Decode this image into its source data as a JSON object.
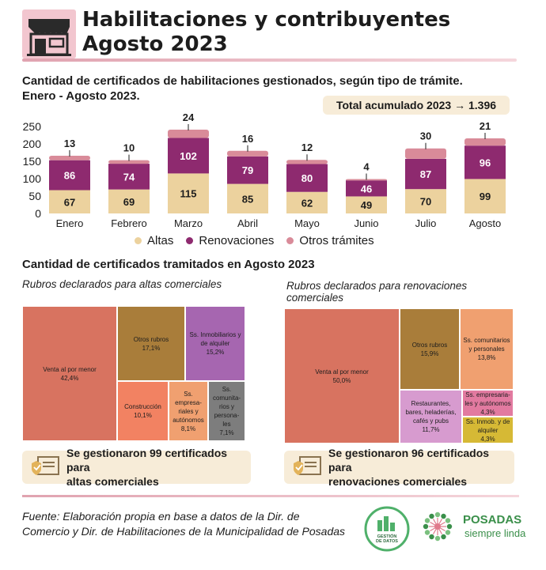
{
  "header": {
    "title_line1": "Habilitaciones y contribuyentes",
    "title_line2": "Agosto 2023"
  },
  "section1": {
    "title_line1": "Cantidad de certificados de habilitaciones gestionados, según tipo de trámite.",
    "title_line2": "Enero - Agosto 2023.",
    "total_label": "Total acumulado 2023  →  1.396"
  },
  "chart_data": {
    "type": "bar",
    "stacked": true,
    "categories": [
      "Enero",
      "Febrero",
      "Marzo",
      "Abril",
      "Mayo",
      "Junio",
      "Julio",
      "Agosto"
    ],
    "series": [
      {
        "name": "Altas",
        "values": [
          67,
          69,
          115,
          85,
          62,
          49,
          70,
          99
        ],
        "color": "#ecd29e"
      },
      {
        "name": "Renovaciones",
        "values": [
          86,
          74,
          102,
          79,
          80,
          46,
          87,
          96
        ],
        "color": "#8e2a6f"
      },
      {
        "name": "Otros trámites",
        "values": [
          13,
          10,
          24,
          16,
          12,
          4,
          30,
          21
        ],
        "color": "#d98b99"
      }
    ],
    "yticks": [
      0,
      50,
      100,
      150,
      200,
      250
    ],
    "ylim": [
      0,
      250
    ],
    "legend_position": "bottom",
    "grid": false
  },
  "section2": {
    "title": "Cantidad de certificados tramitados en Agosto 2023",
    "left_subtitle": "Rubros declarados para altas comerciales",
    "right_subtitle": "Rubros declarados para renovaciones comerciales",
    "altas_tiles": [
      {
        "label": "Venta al por menor",
        "value": "42,4%",
        "color": "#d87360"
      },
      {
        "label": "Otros rubros",
        "value": "17,1%",
        "color": "#a97d3a"
      },
      {
        "label": "Ss. Inmobiliarios y de alquiler",
        "value": "15,2%",
        "color": "#a666b0"
      },
      {
        "label": "Construcción",
        "value": "10,1%",
        "color": "#f28262"
      },
      {
        "label": "Ss. empresa-riales y autónomos",
        "value": "8,1%",
        "color": "#f0a070"
      },
      {
        "label": "Ss. comunita-rios y persona-les",
        "value": "7,1%",
        "color": "#7d7d7d"
      }
    ],
    "renov_tiles": [
      {
        "label": "Venta al por menor",
        "value": "50,0%",
        "color": "#d87360"
      },
      {
        "label": "Otros rubros",
        "value": "15,9%",
        "color": "#a97d3a"
      },
      {
        "label": "Ss. comunitarios y personales",
        "value": "13,8%",
        "color": "#f0a070"
      },
      {
        "label": "Restaurantes, bares, heladerías, cafés y pubs",
        "value": "11,7%",
        "color": "#d79bcf"
      },
      {
        "label": "Ss. empresaria-les y autónomos",
        "value": "4,3%",
        "color": "#e27aa0"
      },
      {
        "label": "Ss. Inmob. y de alquiler",
        "value": "4,3%",
        "color": "#d6b935"
      }
    ],
    "left_banner_line1": "Se gestionaron 99 certificados para",
    "left_banner_line2": "altas comerciales",
    "right_banner_line1": "Se gestionaron 96 certificados para",
    "right_banner_line2": "renovaciones comerciales"
  },
  "footer": {
    "source_line1": "Fuente: Elaboración propia en base a datos de la Dir. de",
    "source_line2": "Comercio  y Dir. de Habilitaciones de la Municipalidad de Posadas",
    "logo1_text_line1": "GESTIÓN",
    "logo1_text_line2": "DE DATOS",
    "logo2_name": "POSADAS",
    "logo2_tagline": "siempre linda"
  }
}
